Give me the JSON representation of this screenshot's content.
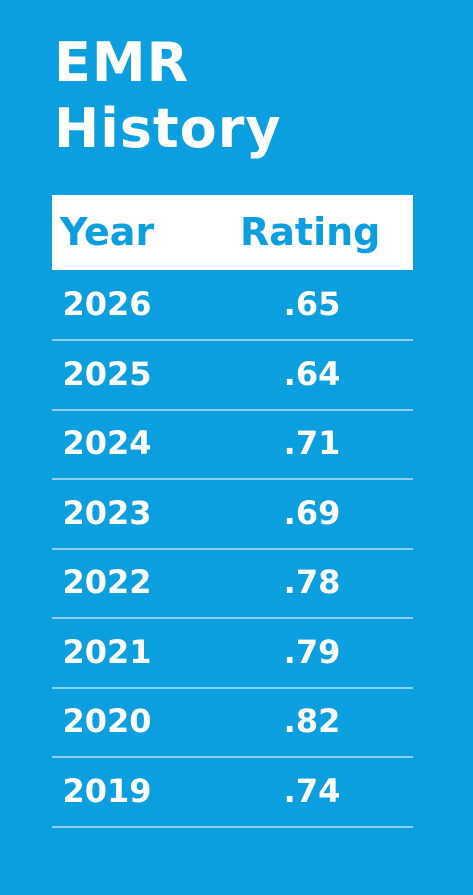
{
  "title": [
    "EMR",
    "History"
  ],
  "table": {
    "header": [
      "Year",
      "Rating"
    ],
    "rows": [
      [
        "2026",
        ".65"
      ],
      [
        "2025",
        ".64"
      ],
      [
        "2024",
        ".71"
      ],
      [
        "2023",
        ".69"
      ],
      [
        "2022",
        ".78"
      ],
      [
        "2021",
        ".79"
      ],
      [
        "2020",
        ".82"
      ],
      [
        "2019",
        ".74"
      ]
    ]
  }
}
